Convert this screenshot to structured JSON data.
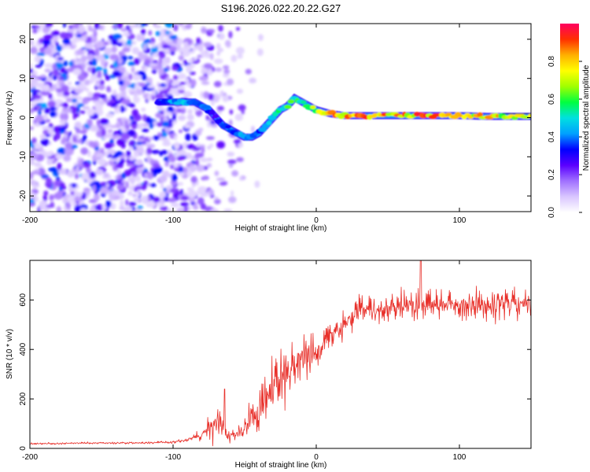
{
  "figure_title": "S196.2026.022.20.22.G27",
  "chart_data": [
    {
      "type": "heatmap",
      "title": "S196.2026.022.20.22.G27",
      "xlabel": "Height of straight line (km)",
      "ylabel": "Frequency (Hz)",
      "xlim": [
        -200,
        150
      ],
      "ylim": [
        -24,
        24
      ],
      "xticks": [
        -200,
        -100,
        0,
        100
      ],
      "yticks": [
        -20,
        -10,
        0,
        10,
        20
      ],
      "grid": false,
      "colorbar": {
        "label": "Normalized spectral amplitude",
        "range": [
          0,
          1
        ],
        "ticks": [
          "0.0",
          "0.2",
          "0.4",
          "0.6",
          "0.8"
        ],
        "colors": [
          "#ffffff",
          "#d9c6ff",
          "#a070ff",
          "#5a00ff",
          "#0000ff",
          "#00a0ff",
          "#00e0e0",
          "#00ff40",
          "#a0ff00",
          "#ffff00",
          "#ffb000",
          "#ff3000",
          "#ff0060"
        ]
      },
      "signal_track": {
        "x_km": [
          -110,
          -100,
          -95,
          -90,
          -85,
          -80,
          -75,
          -70,
          -65,
          -60,
          -55,
          -50,
          -45,
          -40,
          -35,
          -30,
          -25,
          -20,
          -15,
          -10,
          -5,
          0,
          10,
          20,
          40,
          60,
          80,
          100,
          120,
          140,
          150
        ],
        "freq_hz": [
          4,
          4,
          4,
          4,
          4,
          3,
          2,
          0,
          -2,
          -3,
          -4,
          -5,
          -5,
          -4,
          -2,
          0,
          2,
          3,
          5,
          4,
          3,
          2,
          1,
          0.5,
          0.5,
          0.5,
          0.5,
          0.5,
          0.3,
          0.3,
          0.3
        ],
        "amplitude": [
          0.35,
          0.45,
          0.55,
          0.5,
          0.45,
          0.4,
          0.35,
          0.3,
          0.35,
          0.35,
          0.4,
          0.45,
          0.5,
          0.4,
          0.45,
          0.5,
          0.55,
          0.6,
          0.6,
          0.65,
          0.7,
          0.75,
          0.8,
          0.9,
          0.85,
          0.85,
          0.9,
          0.85,
          0.8,
          0.75,
          0.7
        ]
      },
      "noise_region_km": [
        -200,
        -60
      ]
    },
    {
      "type": "line",
      "xlabel": "Height of straight line (km)",
      "ylabel": "SNR (10 * v/v)",
      "xlim": [
        -200,
        150
      ],
      "ylim": [
        0,
        760
      ],
      "xticks": [
        -200,
        -100,
        0,
        100
      ],
      "yticks": [
        0,
        200,
        400,
        600
      ],
      "grid": false,
      "series": [
        {
          "name": "SNR",
          "color": "#e8302a",
          "x": [
            -200,
            -180,
            -160,
            -140,
            -120,
            -100,
            -90,
            -80,
            -75,
            -70,
            -65,
            -60,
            -55,
            -50,
            -45,
            -40,
            -35,
            -30,
            -25,
            -20,
            -15,
            -10,
            -5,
            0,
            5,
            10,
            15,
            20,
            25,
            30,
            40,
            50,
            60,
            70,
            80,
            90,
            100,
            110,
            120,
            130,
            140,
            150
          ],
          "values": [
            20,
            20,
            22,
            22,
            22,
            25,
            35,
            55,
            90,
            100,
            70,
            50,
            60,
            80,
            120,
            150,
            200,
            250,
            270,
            310,
            340,
            360,
            380,
            390,
            410,
            440,
            470,
            500,
            530,
            550,
            560,
            570,
            575,
            580,
            580,
            580,
            580,
            580,
            580,
            580,
            580,
            580
          ],
          "variation": [
            5,
            5,
            5,
            5,
            5,
            8,
            10,
            30,
            60,
            130,
            40,
            30,
            40,
            60,
            100,
            120,
            140,
            150,
            150,
            140,
            130,
            120,
            110,
            100,
            90,
            90,
            80,
            80,
            80,
            80,
            80,
            80,
            80,
            80,
            80,
            80,
            80,
            80,
            80,
            80,
            80,
            80
          ],
          "peaks": {
            "x": [
              -64,
              73
            ],
            "values": [
              240,
              760
            ]
          }
        }
      ]
    }
  ]
}
